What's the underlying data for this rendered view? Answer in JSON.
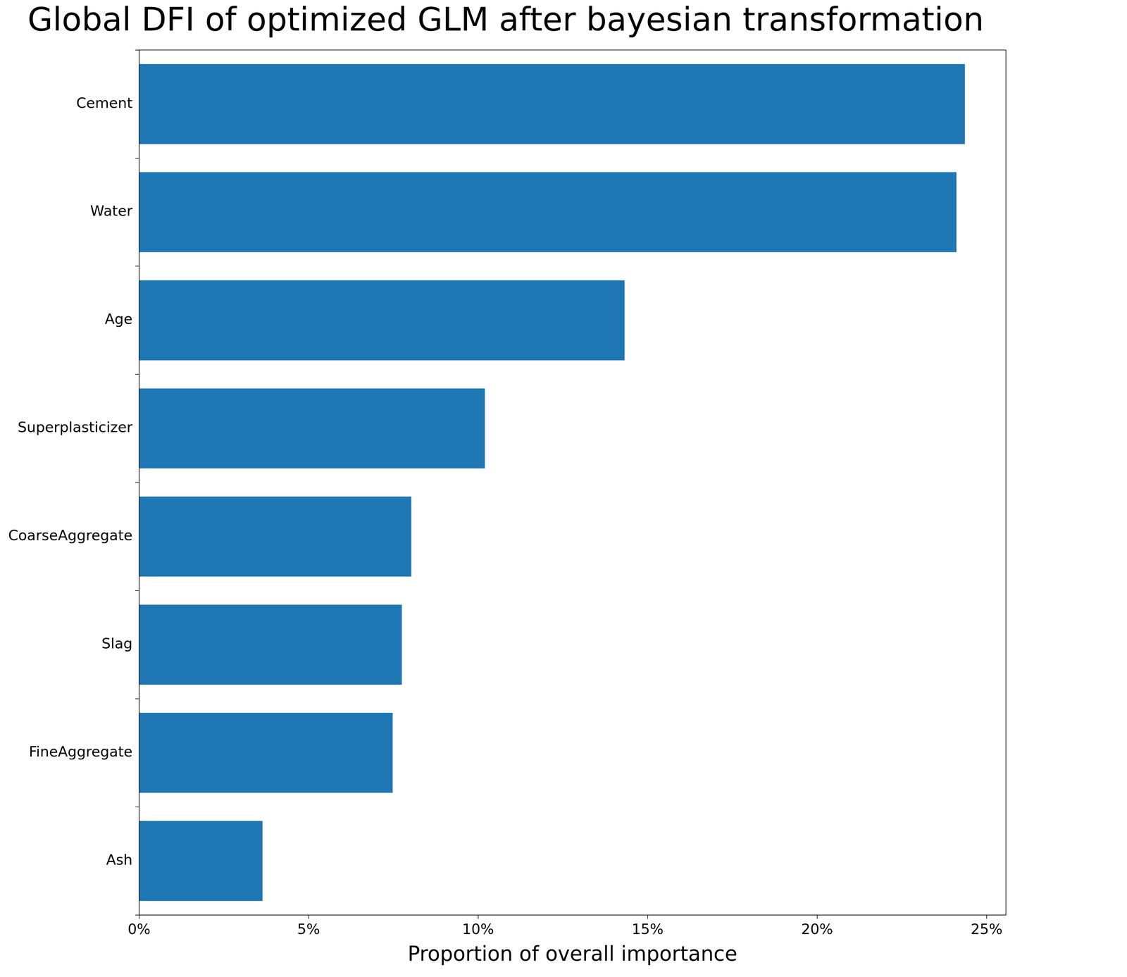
{
  "chart_data": {
    "type": "bar",
    "orientation": "horizontal",
    "title": "Global DFI of optimized GLM after bayesian transformation",
    "x_label": "Proportion of overall importance",
    "categories": [
      "Cement",
      "Water",
      "Age",
      "Superplasticizer",
      "CoarseAggregate",
      "Slag",
      "FineAggregate",
      "Ash"
    ],
    "values": [
      24.36,
      24.11,
      14.32,
      10.2,
      8.03,
      7.75,
      7.48,
      3.64
    ],
    "color": "#1f77b4",
    "xlim": [
      0,
      25.57
    ],
    "xticks": [
      {
        "value": 0,
        "label": "0%"
      },
      {
        "value": 5,
        "label": "5%"
      },
      {
        "value": 10,
        "label": "10%"
      },
      {
        "value": 15,
        "label": "15%"
      },
      {
        "value": 20,
        "label": "20%"
      },
      {
        "value": 25,
        "label": "25%"
      }
    ],
    "grid": false
  }
}
